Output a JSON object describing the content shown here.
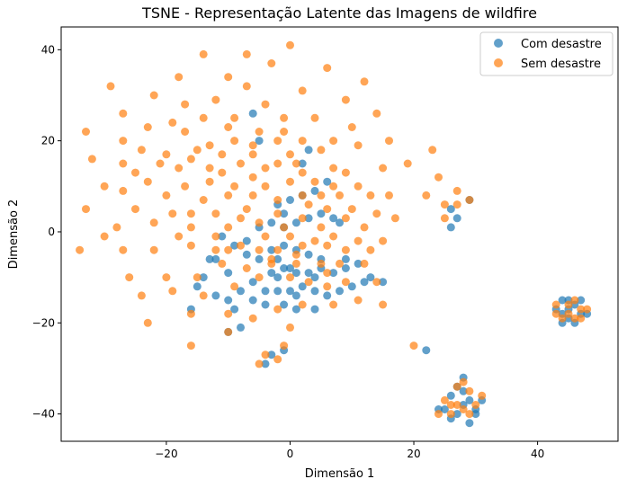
{
  "chart_data": {
    "type": "scatter",
    "title": "TSNE - Representação Latente das Imagens de wildfire",
    "xlabel": "Dimensão 1",
    "ylabel": "Dimensão 2",
    "xlim": [
      -37,
      53
    ],
    "ylim": [
      -46,
      45
    ],
    "xticks": [
      -20,
      0,
      20,
      40
    ],
    "yticks": [
      -40,
      -20,
      0,
      20,
      40
    ],
    "xtick_labels": [
      "−20",
      "0",
      "20",
      "40"
    ],
    "ytick_labels": [
      "−40",
      "−20",
      "0",
      "20",
      "40"
    ],
    "grid": false,
    "legend": "top-right",
    "series": [
      {
        "name": "Com desastre",
        "color": "#1f77b4",
        "points": [
          [
            -6,
            -11
          ],
          [
            -8,
            -13
          ],
          [
            -10,
            -15
          ],
          [
            -12,
            -14
          ],
          [
            -9,
            -17
          ],
          [
            -6,
            -15
          ],
          [
            -4,
            -13
          ],
          [
            -2,
            -13
          ],
          [
            0,
            -13
          ],
          [
            2,
            -12
          ],
          [
            4,
            -13
          ],
          [
            6,
            -14
          ],
          [
            8,
            -13
          ],
          [
            10,
            -12
          ],
          [
            12,
            -11
          ],
          [
            -3,
            -9
          ],
          [
            -1,
            -8
          ],
          [
            1,
            -9
          ],
          [
            3,
            -9
          ],
          [
            5,
            -8
          ],
          [
            7,
            -9
          ],
          [
            9,
            -8
          ],
          [
            -5,
            -6
          ],
          [
            -3,
            -4
          ],
          [
            -1,
            -3
          ],
          [
            1,
            -4
          ],
          [
            3,
            -5
          ],
          [
            5,
            -6
          ],
          [
            -7,
            -2
          ],
          [
            -5,
            1
          ],
          [
            -3,
            2
          ],
          [
            -1,
            4
          ],
          [
            1,
            2
          ],
          [
            3,
            3
          ],
          [
            5,
            4
          ],
          [
            7,
            3
          ],
          [
            -2,
            6
          ],
          [
            0,
            7
          ],
          [
            2,
            8
          ],
          [
            4,
            9
          ],
          [
            6,
            11
          ],
          [
            -12,
            -6
          ],
          [
            -10,
            -9
          ],
          [
            -14,
            -10
          ],
          [
            -15,
            -12
          ],
          [
            -16,
            -17
          ],
          [
            -1,
            -16
          ],
          [
            -4,
            -16
          ],
          [
            1,
            -17
          ],
          [
            4,
            -17
          ],
          [
            -1,
            -26
          ],
          [
            -3,
            -27
          ],
          [
            -4,
            -29
          ],
          [
            -8,
            -21
          ],
          [
            -10,
            -22
          ],
          [
            2,
            15
          ],
          [
            3,
            18
          ],
          [
            -5,
            20
          ],
          [
            -6,
            26
          ],
          [
            13,
            -10
          ],
          [
            15,
            -11
          ],
          [
            -13,
            -6
          ],
          [
            9,
            -6
          ],
          [
            11,
            -7
          ],
          [
            -2,
            -6
          ],
          [
            -1,
            1
          ],
          [
            8,
            2
          ],
          [
            26,
            5
          ],
          [
            27,
            3
          ],
          [
            29,
            7
          ],
          [
            26,
            1
          ],
          [
            28,
            -38
          ],
          [
            27,
            -40
          ],
          [
            26,
            -41
          ],
          [
            25,
            -39
          ],
          [
            29,
            -37
          ],
          [
            28,
            -35
          ],
          [
            30,
            -39
          ],
          [
            31,
            -37
          ],
          [
            29,
            -42
          ],
          [
            27,
            -34
          ],
          [
            26,
            -36
          ],
          [
            28,
            -32
          ],
          [
            30,
            -40
          ],
          [
            24,
            -39
          ],
          [
            44,
            -15
          ],
          [
            45,
            -17
          ],
          [
            46,
            -16
          ],
          [
            47,
            -18
          ],
          [
            45,
            -19
          ],
          [
            44,
            -20
          ],
          [
            46,
            -20
          ],
          [
            43,
            -17
          ],
          [
            47,
            -15
          ],
          [
            48,
            -18
          ],
          [
            44,
            -18
          ],
          [
            45,
            -15
          ],
          [
            -7,
            -5
          ],
          [
            -9,
            -3
          ],
          [
            -11,
            -1
          ],
          [
            22,
            -26
          ],
          [
            0,
            -8
          ],
          [
            4,
            -10
          ],
          [
            1,
            -14
          ],
          [
            -2,
            -10
          ]
        ]
      },
      {
        "name": "Sem desastre",
        "color": "#ff7f0e",
        "points": [
          [
            0,
            41
          ],
          [
            -14,
            39
          ],
          [
            -7,
            39
          ],
          [
            -3,
            37
          ],
          [
            6,
            36
          ],
          [
            12,
            33
          ],
          [
            -10,
            34
          ],
          [
            -18,
            34
          ],
          [
            -29,
            32
          ],
          [
            -7,
            32
          ],
          [
            2,
            31
          ],
          [
            9,
            29
          ],
          [
            -22,
            30
          ],
          [
            -12,
            29
          ],
          [
            -17,
            28
          ],
          [
            -4,
            28
          ],
          [
            -27,
            26
          ],
          [
            -14,
            25
          ],
          [
            -9,
            25
          ],
          [
            -1,
            25
          ],
          [
            14,
            26
          ],
          [
            4,
            25
          ],
          [
            -19,
            24
          ],
          [
            -23,
            23
          ],
          [
            -10,
            23
          ],
          [
            -5,
            22
          ],
          [
            -33,
            22
          ],
          [
            -17,
            22
          ],
          [
            10,
            23
          ],
          [
            -1,
            22
          ],
          [
            -27,
            20
          ],
          [
            -9,
            20
          ],
          [
            -2,
            20
          ],
          [
            -13,
            19
          ],
          [
            -6,
            19
          ],
          [
            2,
            20
          ],
          [
            7,
            20
          ],
          [
            16,
            20
          ],
          [
            -24,
            18
          ],
          [
            -15,
            18
          ],
          [
            -20,
            17
          ],
          [
            -11,
            17
          ],
          [
            -6,
            17
          ],
          [
            0,
            17
          ],
          [
            11,
            19
          ],
          [
            5,
            18
          ],
          [
            -32,
            16
          ],
          [
            -27,
            15
          ],
          [
            -21,
            15
          ],
          [
            -16,
            16
          ],
          [
            -8,
            15
          ],
          [
            -2,
            15
          ],
          [
            7,
            14
          ],
          [
            1,
            15
          ],
          [
            -13,
            14
          ],
          [
            -4,
            14
          ],
          [
            -18,
            14
          ],
          [
            -25,
            13
          ],
          [
            -11,
            13
          ],
          [
            -6,
            12
          ],
          [
            2,
            13
          ],
          [
            9,
            13
          ],
          [
            15,
            14
          ],
          [
            19,
            15
          ],
          [
            -30,
            10
          ],
          [
            -23,
            11
          ],
          [
            -17,
            10
          ],
          [
            -13,
            11
          ],
          [
            -9,
            10
          ],
          [
            -4,
            10
          ],
          [
            0,
            11
          ],
          [
            4,
            11
          ],
          [
            7,
            10
          ],
          [
            11,
            10
          ],
          [
            23,
            18
          ],
          [
            24,
            12
          ],
          [
            -27,
            9
          ],
          [
            -20,
            8
          ],
          [
            -14,
            7
          ],
          [
            -10,
            8
          ],
          [
            -6,
            8
          ],
          [
            -2,
            7
          ],
          [
            2,
            8
          ],
          [
            5,
            8
          ],
          [
            8,
            8
          ],
          [
            13,
            8
          ],
          [
            16,
            8
          ],
          [
            -25,
            5
          ],
          [
            -19,
            4
          ],
          [
            -12,
            4
          ],
          [
            -7,
            5
          ],
          [
            -2,
            4
          ],
          [
            3,
            6
          ],
          [
            6,
            5
          ],
          [
            10,
            5
          ],
          [
            14,
            4
          ],
          [
            -33,
            5
          ],
          [
            -28,
            1
          ],
          [
            -22,
            2
          ],
          [
            -16,
            1
          ],
          [
            -10,
            1
          ],
          [
            -5,
            2
          ],
          [
            -1,
            1
          ],
          [
            2,
            3
          ],
          [
            5,
            1
          ],
          [
            9,
            3
          ],
          [
            12,
            1
          ],
          [
            17,
            3
          ],
          [
            -30,
            -1
          ],
          [
            -18,
            -1
          ],
          [
            -12,
            -4
          ],
          [
            -8,
            -3
          ],
          [
            -4,
            -1
          ],
          [
            0,
            -1
          ],
          [
            4,
            -2
          ],
          [
            7,
            -1
          ],
          [
            11,
            -2
          ],
          [
            15,
            -2
          ],
          [
            -27,
            -4
          ],
          [
            -22,
            -4
          ],
          [
            -16,
            -3
          ],
          [
            -10,
            -4
          ],
          [
            -5,
            -4
          ],
          [
            -2,
            -4
          ],
          [
            2,
            -3
          ],
          [
            6,
            -3
          ],
          [
            9,
            -4
          ],
          [
            13,
            -4
          ],
          [
            -34,
            -4
          ],
          [
            -26,
            -10
          ],
          [
            -20,
            -10
          ],
          [
            -15,
            -10
          ],
          [
            -11,
            -7
          ],
          [
            -7,
            -8
          ],
          [
            -3,
            -7
          ],
          [
            1,
            -7
          ],
          [
            5,
            -7
          ],
          [
            8,
            -7
          ],
          [
            12,
            -7
          ],
          [
            -24,
            -14
          ],
          [
            -19,
            -13
          ],
          [
            -14,
            -14
          ],
          [
            -9,
            -12
          ],
          [
            -5,
            -10
          ],
          [
            0,
            -10
          ],
          [
            3,
            -11
          ],
          [
            6,
            -12
          ],
          [
            9,
            -11
          ],
          [
            14,
            -11
          ],
          [
            -23,
            -20
          ],
          [
            -16,
            -18
          ],
          [
            -10,
            -18
          ],
          [
            -6,
            -19
          ],
          [
            -2,
            -17
          ],
          [
            2,
            -16
          ],
          [
            7,
            -16
          ],
          [
            11,
            -15
          ],
          [
            15,
            -16
          ],
          [
            -16,
            -25
          ],
          [
            -10,
            -22
          ],
          [
            0,
            -21
          ],
          [
            -1,
            -25
          ],
          [
            -4,
            -27
          ],
          [
            -2,
            -28
          ],
          [
            -5,
            -29
          ],
          [
            27,
            9
          ],
          [
            29,
            7
          ],
          [
            25,
            6
          ],
          [
            27,
            6
          ],
          [
            25,
            3
          ],
          [
            22,
            8
          ],
          [
            20,
            -25
          ],
          [
            27,
            -34
          ],
          [
            29,
            -35
          ],
          [
            25,
            -37
          ],
          [
            28,
            -39
          ],
          [
            30,
            -38
          ],
          [
            26,
            -40
          ],
          [
            24,
            -40
          ],
          [
            29,
            -40
          ],
          [
            27,
            -38
          ],
          [
            31,
            -36
          ],
          [
            28,
            -33
          ],
          [
            26,
            -38
          ],
          [
            43,
            -18
          ],
          [
            45,
            -16
          ],
          [
            47,
            -17
          ],
          [
            44,
            -19
          ],
          [
            46,
            -19
          ],
          [
            48,
            -17
          ],
          [
            45,
            -18
          ],
          [
            46,
            -15
          ],
          [
            43,
            -16
          ],
          [
            47,
            -19
          ],
          [
            -16,
            4
          ],
          [
            -8,
            3
          ],
          [
            -3,
            -6
          ],
          [
            1,
            -5
          ],
          [
            6,
            -9
          ],
          [
            -12,
            -1
          ]
        ]
      }
    ]
  }
}
